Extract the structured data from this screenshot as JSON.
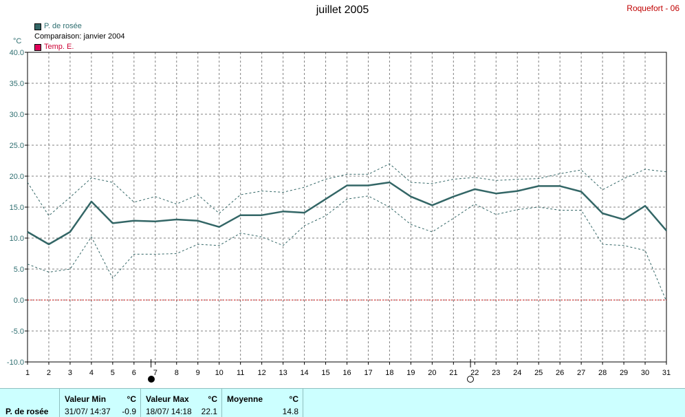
{
  "header": {
    "title": "juillet 2005",
    "station": "Roquefort - 06"
  },
  "legend": [
    {
      "label": "P. de rosée",
      "color": "#336666",
      "text_color": "#2e6e70"
    },
    {
      "label": "Comparaison: janvier 2004",
      "color": "",
      "text_color": "#000000"
    },
    {
      "label": "Temp. E.",
      "color": "#e0005a",
      "text_color": "#cc0033"
    }
  ],
  "unit_label": "°C",
  "moon_phases": [
    {
      "day": 6.8,
      "icon": "new-moon-icon"
    },
    {
      "day": 21.8,
      "icon": "full-moon-icon"
    }
  ],
  "chart_data": {
    "type": "line",
    "x": [
      1,
      2,
      3,
      4,
      5,
      6,
      7,
      8,
      9,
      10,
      11,
      12,
      13,
      14,
      15,
      16,
      17,
      18,
      19,
      20,
      21,
      22,
      23,
      24,
      25,
      26,
      27,
      28,
      29,
      30,
      31
    ],
    "ylim": [
      -10,
      40
    ],
    "y_ticks": [
      "-10.0",
      "-5.0",
      "0.0",
      "5.0",
      "10.0",
      "15.0",
      "20.0",
      "25.0",
      "30.0",
      "35.0",
      "40.0"
    ],
    "x_ticks": [
      "1",
      "2",
      "3",
      "4",
      "5",
      "6",
      "7",
      "8",
      "9",
      "10",
      "11",
      "12",
      "13",
      "14",
      "15",
      "16",
      "17",
      "18",
      "19",
      "20",
      "21",
      "22",
      "23",
      "24",
      "25",
      "26",
      "27",
      "28",
      "29",
      "30",
      "31"
    ],
    "grid": true,
    "series": [
      {
        "name": "P. de rosée",
        "color": "#336666",
        "values": [
          11.0,
          9.0,
          11.0,
          15.9,
          12.4,
          12.8,
          12.7,
          13.0,
          12.8,
          11.8,
          13.7,
          13.7,
          14.3,
          14.1,
          16.3,
          18.5,
          18.5,
          19.0,
          16.7,
          15.3,
          16.7,
          17.9,
          17.2,
          17.6,
          18.4,
          18.4,
          17.5,
          14.0,
          13.0,
          15.2,
          11.2
        ]
      },
      {
        "name": "",
        "color": "#336666",
        "values": [
          19.0,
          13.6,
          16.6,
          19.7,
          19.0,
          15.8,
          16.7,
          15.5,
          17.0,
          14.0,
          17.0,
          17.6,
          17.4,
          18.2,
          19.5,
          20.3,
          20.3,
          22.0,
          19.0,
          18.8,
          19.5,
          19.8,
          19.3,
          19.5,
          19.6,
          20.4,
          21.0,
          17.8,
          19.6,
          21.1,
          20.7
        ]
      },
      {
        "name": "",
        "color": "#336666",
        "values": [
          5.8,
          4.5,
          5.0,
          10.2,
          3.5,
          7.4,
          7.4,
          7.5,
          9.0,
          8.8,
          10.8,
          10.2,
          8.8,
          12.0,
          13.6,
          16.3,
          16.8,
          15.0,
          12.2,
          11.0,
          13.2,
          15.5,
          13.8,
          14.6,
          15.0,
          14.5,
          14.5,
          9.0,
          8.8,
          8.0,
          -0.2
        ]
      },
      {
        "name": "Temp. E.",
        "color": "#cc0000",
        "values": [
          0,
          0,
          0,
          0,
          0,
          0,
          0,
          0,
          0,
          0,
          0,
          0,
          0,
          0,
          0,
          0,
          0,
          0,
          0,
          0,
          0,
          0,
          0,
          0,
          0,
          0,
          0,
          0,
          0,
          0,
          0
        ]
      }
    ]
  },
  "stats": {
    "series_label": "P. de rosée",
    "min": {
      "header": "Valeur Min",
      "unit": "°C",
      "date": "31/07/ 14:37",
      "value": "-0.9"
    },
    "max": {
      "header": "Valeur Max",
      "unit": "°C",
      "date": "18/07/ 14:18",
      "value": "22.1"
    },
    "avg": {
      "header": "Moyenne",
      "unit": "°C",
      "value": "14.8"
    }
  }
}
